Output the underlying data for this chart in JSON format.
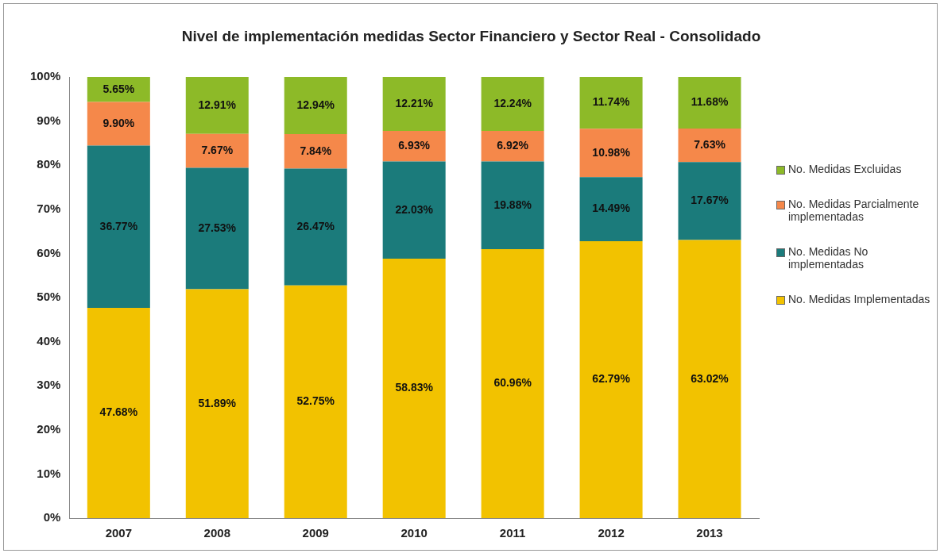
{
  "chart_data": {
    "type": "bar",
    "title": "Nivel de implementación medidas Sector Financiero y Sector Real - Consolidado",
    "categories": [
      "2007",
      "2008",
      "2009",
      "2010",
      "2011",
      "2012",
      "2013"
    ],
    "stacked": true,
    "ylim": [
      0,
      100
    ],
    "yticks": [
      {
        "value": 0,
        "label": "0%"
      },
      {
        "value": 10,
        "label": "10%"
      },
      {
        "value": 20,
        "label": "20%"
      },
      {
        "value": 30,
        "label": "30%"
      },
      {
        "value": 40,
        "label": "40%"
      },
      {
        "value": 50,
        "label": "50%"
      },
      {
        "value": 60,
        "label": "60%"
      },
      {
        "value": 70,
        "label": "70%"
      },
      {
        "value": 80,
        "label": "80%"
      },
      {
        "value": 90,
        "label": "90%"
      },
      {
        "value": 100,
        "label": "100%"
      }
    ],
    "grid": false,
    "legend": "right",
    "series": [
      {
        "name": "No. Medidas Implementadas",
        "color": "#f2c200",
        "values": [
          47.68,
          51.89,
          52.75,
          58.83,
          60.96,
          62.79,
          63.02
        ],
        "value_labels": [
          "47.68%",
          "51.89%",
          "52.75%",
          "58.83%",
          "60.96%",
          "62.79%",
          "63.02%"
        ]
      },
      {
        "name": "No. Medidas No implementadas",
        "color": "#1b7b7b",
        "values": [
          36.77,
          27.53,
          26.47,
          22.03,
          19.88,
          14.49,
          17.67
        ],
        "value_labels": [
          "36.77%",
          "27.53%",
          "26.47%",
          "22.03%",
          "19.88%",
          "14.49%",
          "17.67%"
        ]
      },
      {
        "name": "No. Medidas Parcialmente implementadas",
        "color": "#f5884a",
        "values": [
          9.9,
          7.67,
          7.84,
          6.93,
          6.92,
          10.98,
          7.63
        ],
        "value_labels": [
          "9.90%",
          "7.67%",
          "7.84%",
          "6.93%",
          "6.92%",
          "10.98%",
          "7.63%"
        ]
      },
      {
        "name": "No. Medidas Excluidas",
        "color": "#8dba28",
        "values": [
          5.65,
          12.91,
          12.94,
          12.21,
          12.24,
          11.74,
          11.68
        ],
        "value_labels": [
          "5.65%",
          "12.91%",
          "12.94%",
          "12.21%",
          "12.24%",
          "11.74%",
          "11.68%"
        ]
      }
    ]
  }
}
